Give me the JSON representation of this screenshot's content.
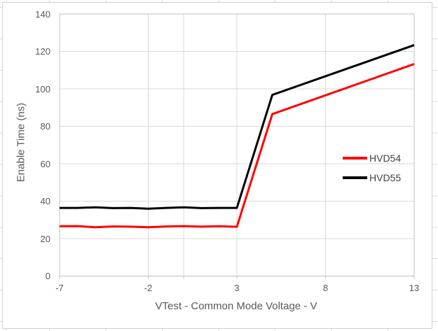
{
  "chart_data": {
    "type": "line",
    "title": "",
    "xlabel": "VTest - Common Mode Voltage - V",
    "ylabel": "Enable Time (ns)",
    "xlim": [
      -7,
      13
    ],
    "ylim": [
      0,
      140
    ],
    "x_ticks": [
      -7,
      -2,
      3,
      8,
      13
    ],
    "y_ticks": [
      0,
      20,
      40,
      60,
      80,
      100,
      120,
      140
    ],
    "x_gridlines": [
      -2,
      0,
      3,
      8
    ],
    "x_tick_marks": [
      -7,
      -2,
      0,
      3,
      8,
      13
    ],
    "grid": true,
    "legend_position": "inside-right",
    "x": [
      -7,
      -6,
      -5,
      -4,
      -3,
      -2,
      -1,
      0,
      1,
      2,
      3,
      5,
      13
    ],
    "series": [
      {
        "name": "HVD54",
        "color": "#ff0000",
        "values": [
          26.6,
          26.7,
          26.1,
          26.5,
          26.4,
          26.1,
          26.5,
          26.7,
          26.4,
          26.6,
          26.3,
          86.5,
          113.3
        ]
      },
      {
        "name": "HVD55",
        "color": "#000000",
        "values": [
          36.4,
          36.4,
          36.7,
          36.3,
          36.4,
          36.0,
          36.4,
          36.7,
          36.3,
          36.4,
          36.4,
          96.8,
          123.4
        ]
      }
    ]
  },
  "colors": {
    "gridline": "#d9d9d9",
    "plot_border": "#c9c9c9",
    "axis_line": "#bfbfbf",
    "tick_text": "#595959",
    "title_text": "#595959",
    "legend_text": "#404040",
    "worksheet_gridline": "#d8d8d8",
    "chart_background": "#ffffff"
  }
}
